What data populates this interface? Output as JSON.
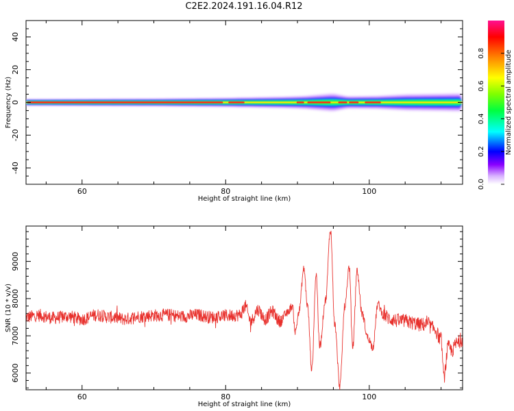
{
  "title": "C2E2.2024.191.16.04.R12",
  "chart_data": [
    {
      "type": "heatmap",
      "xlabel": "Height of straight line (km)",
      "ylabel": "Frequency (Hz)",
      "xlim": [
        52.2,
        113
      ],
      "ylim": [
        -50,
        50
      ],
      "x_ticks": [
        60,
        80,
        100
      ],
      "y_ticks": [
        -40,
        -20,
        0,
        20,
        40
      ],
      "colorbar": {
        "label": "Normalized spectral amplitude",
        "ticks": [
          "0.0",
          "0.2",
          "0.4",
          "0.6",
          "0.8"
        ],
        "range": [
          0,
          1
        ]
      },
      "grid": false,
      "band": {
        "center_hz": 0,
        "halfwidth_hz": [
          [
            52.2,
            1.5
          ],
          [
            70,
            1.8
          ],
          [
            80,
            2.2
          ],
          [
            88,
            2.8
          ],
          [
            91,
            3.2
          ],
          [
            95,
            4.5
          ],
          [
            97,
            3.0
          ],
          [
            101,
            3.2
          ],
          [
            105,
            4.0
          ],
          [
            113,
            4.5
          ]
        ],
        "hot_segments_km": [
          [
            52.5,
            79.5
          ],
          [
            80.5,
            82.5
          ],
          [
            90,
            90.8
          ],
          [
            91.5,
            94.5
          ],
          [
            95.8,
            96.8
          ],
          [
            97.3,
            98.4
          ],
          [
            99.5,
            101.5
          ]
        ]
      }
    },
    {
      "type": "line",
      "xlabel": "Height of straight line (km)",
      "ylabel": "SNR (10 * v/v)",
      "xlim": [
        52.2,
        113
      ],
      "ylim": [
        5550,
        9950
      ],
      "x_ticks": [
        60,
        80,
        100
      ],
      "y_ticks": [
        6000,
        7000,
        8000,
        9000
      ],
      "line_color": "#e8302c",
      "series": [
        {
          "values_x": [
            52.2,
            54,
            56,
            58,
            60,
            62,
            64,
            66,
            68,
            70,
            72,
            74,
            76,
            78,
            80,
            82,
            82.7,
            83.5,
            84.5,
            85.5,
            86.5,
            87.5,
            88.5,
            89.3,
            89.7,
            90.2,
            90.9,
            91.4,
            92,
            92.6,
            93.1,
            93.9,
            94.6,
            95.2,
            95.9,
            96.6,
            97.2,
            97.7,
            98.3,
            99,
            99.8,
            100.5,
            101.2,
            102,
            103,
            104,
            105,
            106,
            107,
            108,
            109,
            110,
            110.4,
            111,
            111.5,
            112.2,
            113
          ],
          "values_y": [
            7500,
            7550,
            7480,
            7520,
            7450,
            7560,
            7500,
            7450,
            7520,
            7550,
            7560,
            7520,
            7560,
            7500,
            7540,
            7560,
            7800,
            7400,
            7700,
            7450,
            7650,
            7400,
            7600,
            7800,
            7100,
            7650,
            8800,
            7800,
            6100,
            8650,
            6700,
            7950,
            9850,
            7300,
            5650,
            7800,
            8850,
            6700,
            8750,
            7600,
            6950,
            6700,
            7850,
            7550,
            7450,
            7400,
            7400,
            7350,
            7300,
            7300,
            7200,
            6900,
            5900,
            6700,
            6600,
            6800,
            6900
          ]
        }
      ]
    }
  ]
}
